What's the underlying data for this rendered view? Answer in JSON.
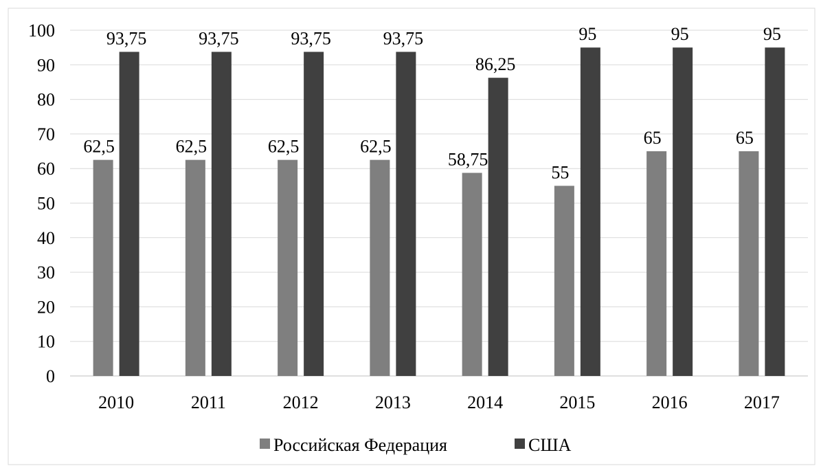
{
  "chart_data": {
    "type": "bar",
    "categories": [
      "2010",
      "2011",
      "2012",
      "2013",
      "2014",
      "2015",
      "2016",
      "2017"
    ],
    "series": [
      {
        "name": "Российская Федерация",
        "color": "#7f7f7f",
        "values": [
          62.5,
          62.5,
          62.5,
          62.5,
          58.75,
          55,
          65,
          65
        ],
        "value_labels": [
          "62,5",
          "62,5",
          "62,5",
          "62,5",
          "58,75",
          "55",
          "65",
          "65"
        ]
      },
      {
        "name": "США",
        "color": "#404040",
        "values": [
          93.75,
          93.75,
          93.75,
          93.75,
          86.25,
          95,
          95,
          95
        ],
        "value_labels": [
          "93,75",
          "93,75",
          "93,75",
          "93,75",
          "86,25",
          "95",
          "95",
          "95"
        ]
      }
    ],
    "ylim": [
      0,
      100
    ],
    "yticks": [
      0,
      10,
      20,
      30,
      40,
      50,
      60,
      70,
      80,
      90,
      100
    ],
    "grid": true,
    "legend": "bottom"
  }
}
